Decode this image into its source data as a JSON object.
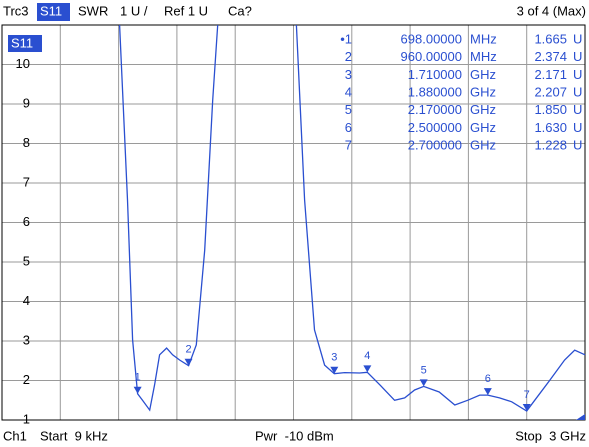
{
  "header": {
    "trace": "Trc3",
    "measure": "S11",
    "format": "SWR",
    "scale": "1 U /",
    "ref": "Ref 1 U",
    "cal": "Ca?",
    "trace_count": "3 of 4 (Max)"
  },
  "footer": {
    "channel": "Ch1",
    "start": "Start  9 kHz",
    "power": "Pwr  -10 dBm",
    "stop": "Stop  3 GHz"
  },
  "chart_data": {
    "type": "line",
    "trace_label": "S11",
    "color": "#2a4fd0",
    "grid": true,
    "xlim": [
      9e-06,
      3
    ],
    "ylim": [
      1,
      11
    ],
    "yticks": [
      1,
      2,
      3,
      4,
      5,
      6,
      7,
      8,
      9,
      10
    ],
    "x": [
      0.605,
      0.646,
      0.672,
      0.698,
      0.723,
      0.76,
      0.785,
      0.811,
      0.847,
      0.878,
      0.914,
      0.96,
      1.0,
      1.043,
      1.084,
      1.11,
      1.3,
      1.515,
      1.557,
      1.608,
      1.66,
      1.71,
      1.763,
      1.84,
      1.88,
      1.944,
      2.02,
      2.072,
      2.123,
      2.17,
      2.25,
      2.33,
      2.396,
      2.458,
      2.5,
      2.56,
      2.623,
      2.7,
      2.741,
      2.818,
      2.895,
      2.947,
      3.0
    ],
    "values": [
      11,
      6.57,
      3.03,
      1.665,
      1.5,
      1.25,
      1.89,
      2.65,
      2.82,
      2.65,
      2.52,
      2.374,
      2.9,
      5.3,
      9.1,
      11,
      null,
      11,
      6.57,
      3.28,
      2.39,
      2.171,
      2.2,
      2.19,
      2.207,
      1.89,
      1.5,
      1.56,
      1.76,
      1.85,
      1.71,
      1.38,
      1.5,
      1.63,
      1.63,
      1.56,
      1.46,
      1.228,
      1.5,
      2.0,
      2.52,
      2.77,
      2.65
    ],
    "markers": [
      {
        "label": "1",
        "table_label": "•1",
        "x": 0.698,
        "value": 1.665,
        "freq_text": "698.00000",
        "freq_unit": "MHz",
        "value_text": "1.665",
        "value_unit": "U"
      },
      {
        "label": "2",
        "table_label": "2",
        "x": 0.96,
        "value": 2.374,
        "freq_text": "960.00000",
        "freq_unit": "MHz",
        "value_text": "2.374",
        "value_unit": "U"
      },
      {
        "label": "3",
        "table_label": "3",
        "x": 1.71,
        "value": 2.171,
        "freq_text": "1.710000",
        "freq_unit": "GHz",
        "value_text": "2.171",
        "value_unit": "U"
      },
      {
        "label": "4",
        "table_label": "4",
        "x": 1.88,
        "value": 2.207,
        "freq_text": "1.880000",
        "freq_unit": "GHz",
        "value_text": "2.207",
        "value_unit": "U"
      },
      {
        "label": "5",
        "table_label": "5",
        "x": 2.17,
        "value": 1.85,
        "freq_text": "2.170000",
        "freq_unit": "GHz",
        "value_text": "1.850",
        "value_unit": "U"
      },
      {
        "label": "6",
        "table_label": "6",
        "x": 2.5,
        "value": 1.63,
        "freq_text": "2.500000",
        "freq_unit": "GHz",
        "value_text": "1.630",
        "value_unit": "U"
      },
      {
        "label": "7",
        "table_label": "7",
        "x": 2.7,
        "value": 1.228,
        "freq_text": "2.700000",
        "freq_unit": "GHz",
        "value_text": "1.228",
        "value_unit": "U"
      }
    ]
  }
}
